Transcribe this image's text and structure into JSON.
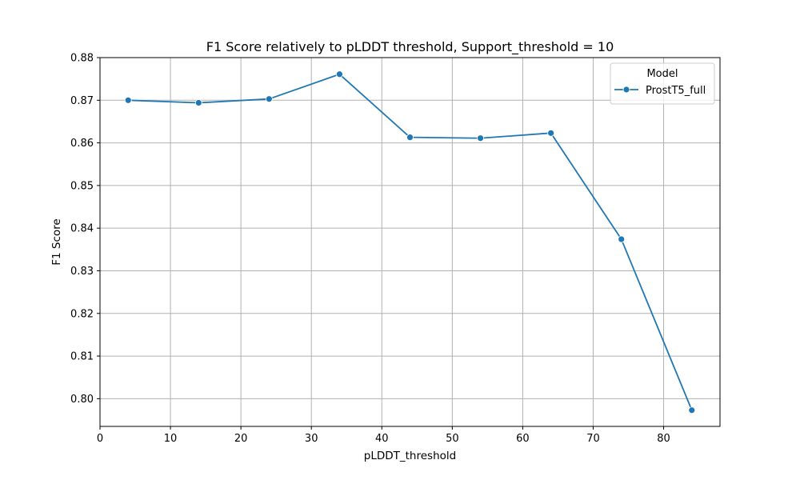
{
  "chart_data": {
    "type": "line",
    "title": "F1 Score relatively to pLDDT threshold, Support_threshold = 10",
    "xlabel": "pLDDT_threshold",
    "ylabel": "F1 Score",
    "xlim": [
      0,
      88
    ],
    "ylim": [
      0.7935,
      0.88
    ],
    "xticks": [
      0,
      10,
      20,
      30,
      40,
      50,
      60,
      70,
      80
    ],
    "yticks": [
      0.8,
      0.81,
      0.82,
      0.83,
      0.84,
      0.85,
      0.86,
      0.87,
      0.88
    ],
    "ytick_labels": [
      "0.80",
      "0.81",
      "0.82",
      "0.83",
      "0.84",
      "0.85",
      "0.86",
      "0.87",
      "0.88"
    ],
    "grid": true,
    "legend": {
      "title": "Model",
      "placement": "top-right"
    },
    "series": [
      {
        "name": "ProstT5_full",
        "color": "#1f77b4",
        "marker": "circle",
        "x": [
          4,
          14,
          24,
          34,
          44,
          54,
          64,
          74,
          84
        ],
        "y": [
          0.87,
          0.8694,
          0.8703,
          0.8761,
          0.8613,
          0.8611,
          0.8623,
          0.8374,
          0.7973
        ]
      }
    ]
  }
}
